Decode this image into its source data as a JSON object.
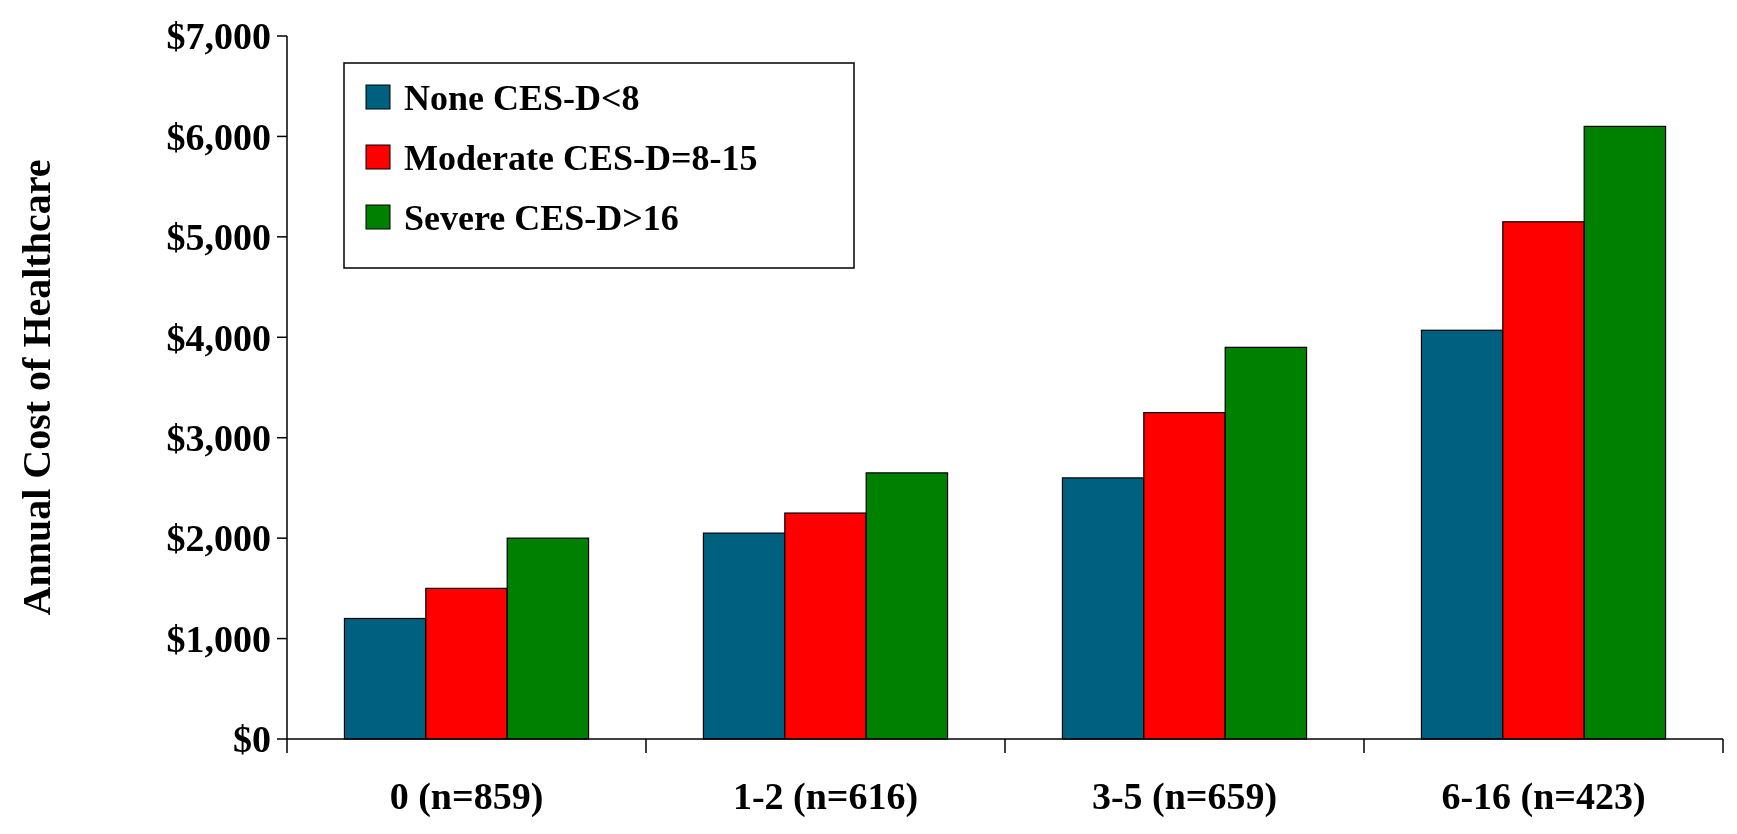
{
  "chart_data": {
    "type": "bar",
    "ylabel": "Annual Cost of Healthcare",
    "categories": [
      "0 (n=859)",
      "1-2 (n=616)",
      "3-5 (n=659)",
      "6-16 (n=423)"
    ],
    "series": [
      {
        "name": "None CES-D<8",
        "color": "#006080",
        "values": [
          1200,
          2050,
          2600,
          4070
        ]
      },
      {
        "name": "Moderate CES-D=8-15",
        "color": "#ff0000",
        "values": [
          1500,
          2250,
          3250,
          5150
        ]
      },
      {
        "name": "Severe CES-D>16",
        "color": "#008000",
        "values": [
          2000,
          2650,
          3900,
          6100
        ]
      }
    ],
    "ylim": [
      0,
      7000
    ],
    "yticks": [
      {
        "value": 0,
        "label": "$0"
      },
      {
        "value": 1000,
        "label": "$1,000"
      },
      {
        "value": 2000,
        "label": "$2,000"
      },
      {
        "value": 3000,
        "label": "$3,000"
      },
      {
        "value": 4000,
        "label": "$4,000"
      },
      {
        "value": 5000,
        "label": "$5,000"
      },
      {
        "value": 6000,
        "label": "$6,000"
      },
      {
        "value": 7000,
        "label": "$7,000"
      }
    ],
    "legend": "top left",
    "grid": false
  }
}
